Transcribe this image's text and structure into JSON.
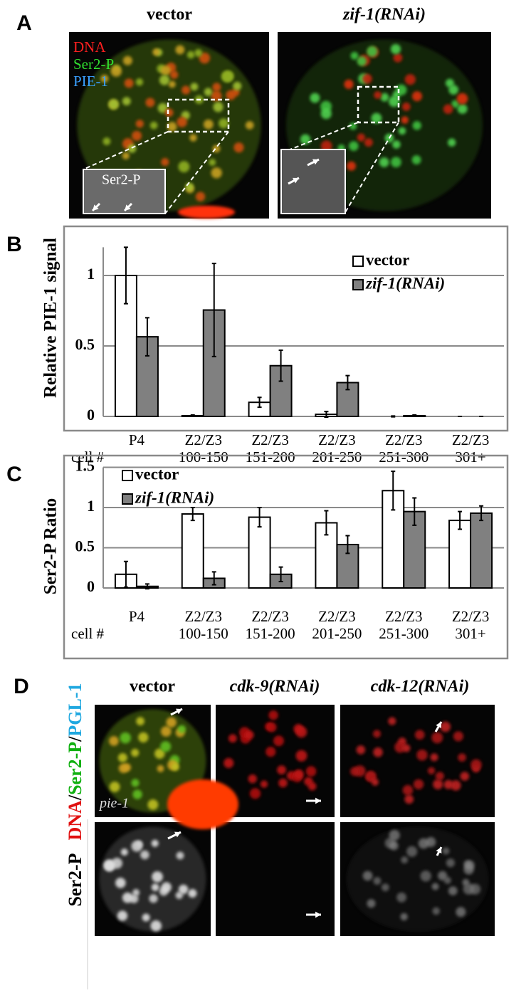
{
  "panel_labels": [
    "A",
    "B",
    "C",
    "D"
  ],
  "panel_a": {
    "headings": [
      "vector",
      "zif-1(RNAi)"
    ],
    "channels": [
      {
        "text": "DNA",
        "color": "#ff2020"
      },
      {
        "text": "Ser2-P",
        "color": "#30e030"
      },
      {
        "text": "PIE-1",
        "color": "#3aa0ff"
      }
    ],
    "inset_label": "Ser2-P"
  },
  "chart_data": [
    {
      "type": "bar",
      "ylabel": "Relative PIE-1 signal",
      "xlabel": "cell #",
      "categories": [
        [
          "P4"
        ],
        [
          "Z2/Z3",
          "100-150"
        ],
        [
          "Z2/Z3",
          "151-200"
        ],
        [
          "Z2/Z3",
          "201-250"
        ],
        [
          "Z2/Z3",
          "251-300"
        ],
        [
          "Z2/Z3",
          "301+"
        ]
      ],
      "series": [
        {
          "name": "vector",
          "color": "#ffffff",
          "values": [
            1,
            0.005,
            0.1,
            0.015,
            0,
            0
          ],
          "errors": [
            0.2,
            0.005,
            0.035,
            0.02,
            0.003,
            0
          ]
        },
        {
          "name": "zif-1(RNAi)",
          "color": "#808080",
          "values": [
            0.565,
            0.755,
            0.36,
            0.24,
            0.005,
            0
          ],
          "errors": [
            0.135,
            0.33,
            0.11,
            0.05,
            0.005,
            0
          ]
        }
      ],
      "ylim": [
        0,
        1.2
      ],
      "yticks": [
        0,
        0.5,
        1
      ],
      "grid": true,
      "legend": "top-right"
    },
    {
      "type": "bar",
      "ylabel": "Ser2-P Ratio",
      "xlabel": "cell #",
      "categories": [
        [
          "P4"
        ],
        [
          "Z2/Z3",
          "100-150"
        ],
        [
          "Z2/Z3",
          "151-200"
        ],
        [
          "Z2/Z3",
          "201-250"
        ],
        [
          "Z2/Z3",
          "251-300"
        ],
        [
          "Z2/Z3",
          "301+"
        ]
      ],
      "series": [
        {
          "name": "vector",
          "color": "#ffffff",
          "values": [
            0.17,
            0.92,
            0.88,
            0.81,
            1.21,
            0.84
          ],
          "errors": [
            0.16,
            0.08,
            0.12,
            0.15,
            0.24,
            0.11
          ]
        },
        {
          "name": "zif-1(RNAi)",
          "color": "#808080",
          "values": [
            0.02,
            0.12,
            0.17,
            0.54,
            0.95,
            0.93
          ],
          "errors": [
            0.03,
            0.08,
            0.09,
            0.11,
            0.17,
            0.09
          ]
        }
      ],
      "ylim": [
        0,
        1.5
      ],
      "yticks": [
        0,
        0.5,
        1,
        1.5
      ],
      "grid": true,
      "legend": "top-left"
    }
  ],
  "panel_d": {
    "headings": [
      "vector",
      "cdk-9(RNAi)",
      "cdk-12(RNAi)"
    ],
    "row_label_parts": [
      {
        "text": "DNA",
        "color": "#e01010"
      },
      {
        "text": "/",
        "color": "#000000"
      },
      {
        "text": "Ser2-P",
        "color": "#10b010"
      },
      {
        "text": "/",
        "color": "#000000"
      },
      {
        "text": "PGL-1",
        "color": "#20a8e0"
      }
    ],
    "row_label_2": "Ser2-P",
    "image_label": "pie-1"
  }
}
